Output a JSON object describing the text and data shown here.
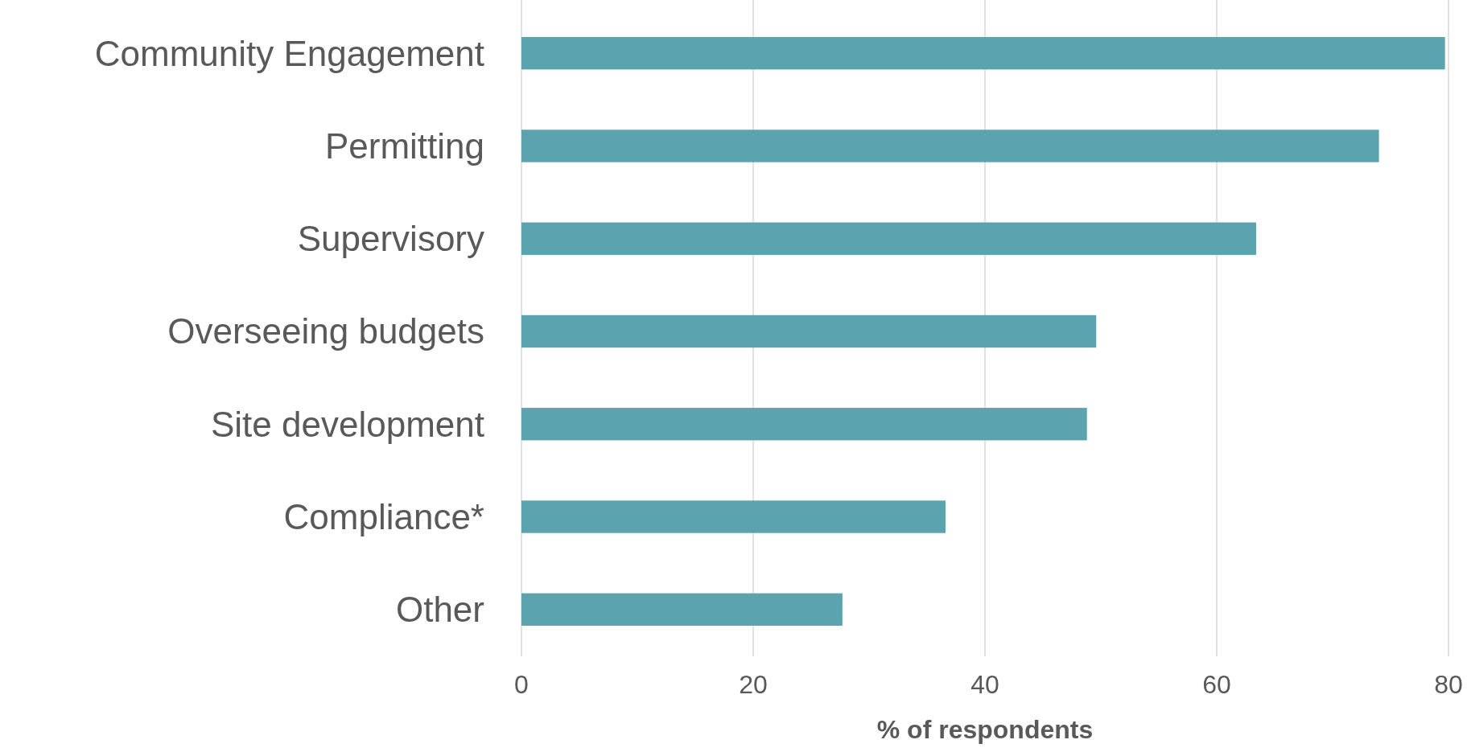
{
  "chart_data": {
    "type": "bar",
    "orientation": "horizontal",
    "xlabel": "% of respondents",
    "categories": [
      "Community Engagement",
      "Permitting",
      "Supervisory",
      "Overseeing budgets",
      "Site development",
      "Compliance*",
      "Other"
    ],
    "values": [
      79.7,
      74.0,
      63.4,
      49.6,
      48.8,
      36.6,
      27.7
    ],
    "color": "#5ba3ae",
    "xlim": [
      0,
      80
    ],
    "xticks": [
      0,
      20,
      40,
      60,
      80
    ],
    "grid": "x"
  }
}
